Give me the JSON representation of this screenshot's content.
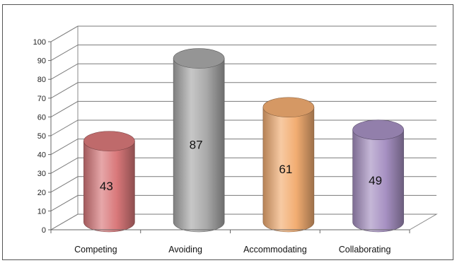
{
  "chart_data": {
    "type": "bar",
    "style": "3d-cylinder",
    "categories": [
      "Competing",
      "Avoiding",
      "Accommodating",
      "Collaborating"
    ],
    "values": [
      43,
      87,
      61,
      49
    ],
    "data_labels": [
      "43",
      "87",
      "61",
      "49"
    ],
    "yticks": [
      "0",
      "10",
      "20",
      "30",
      "40",
      "50",
      "60",
      "70",
      "80",
      "90",
      "100"
    ],
    "ylim": [
      0,
      100
    ],
    "grid": true,
    "legend": "none",
    "colors": {
      "Competing": "#d9787a",
      "Avoiding": "#a9a9a9",
      "Accommodating": "#f2ad72",
      "Collaborating": "#a690c2"
    }
  }
}
